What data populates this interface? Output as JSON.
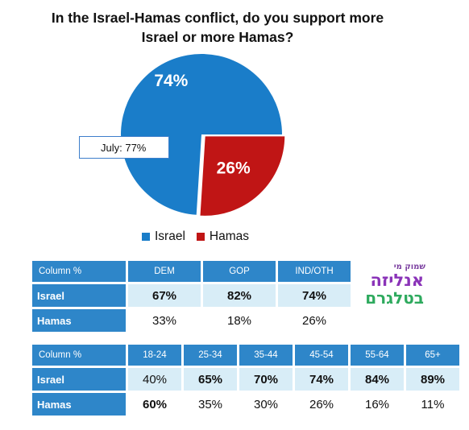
{
  "title_line1": "In the Israel-Hamas conflict, do you support more",
  "title_line2": "Israel or more Hamas?",
  "chart_data": {
    "type": "pie",
    "slices": [
      {
        "label": "Israel",
        "value": 74,
        "display": "74%",
        "color": "#1a7dc9"
      },
      {
        "label": "Hamas",
        "value": 26,
        "display": "26%",
        "color": "#c01515"
      }
    ],
    "callout": "July: 77%",
    "legend": "bottom"
  },
  "party_table": {
    "header": [
      "Column %",
      "DEM",
      "GOP",
      "IND/OTH"
    ],
    "rows": [
      {
        "label": "Israel",
        "values": [
          "67%",
          "82%",
          "74%"
        ]
      },
      {
        "label": "Hamas",
        "values": [
          "33%",
          "18%",
          "26%"
        ]
      }
    ]
  },
  "age_table": {
    "header": [
      "Column %",
      "18-24",
      "25-34",
      "35-44",
      "45-54",
      "55-64",
      "65+"
    ],
    "rows": [
      {
        "label": "Israel",
        "values": [
          "40%",
          "65%",
          "70%",
          "74%",
          "84%",
          "89%"
        ]
      },
      {
        "label": "Hamas",
        "values": [
          "60%",
          "35%",
          "30%",
          "26%",
          "16%",
          "11%"
        ]
      }
    ]
  },
  "logo": {
    "line1": "שמוק מי",
    "line2": "אנליזה",
    "line3": "בטלגרם"
  }
}
